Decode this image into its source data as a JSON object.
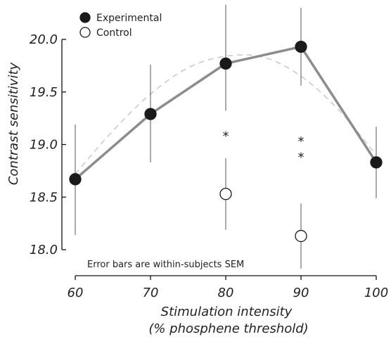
{
  "chart_data": {
    "type": "line",
    "x": [
      60,
      70,
      80,
      90,
      100
    ],
    "xlabel": "Stimulation intensity",
    "xlabel_sub": "(% phosphene threshold)",
    "ylabel": "Contrast sensitivity",
    "xlim": [
      60,
      100
    ],
    "ylim": [
      18.0,
      20.0
    ],
    "x_ticks": [
      "60",
      "70",
      "80",
      "90",
      "100"
    ],
    "y_ticks": [
      "18.0",
      "18.5",
      "19.0",
      "19.5",
      "20.0"
    ],
    "grid": false,
    "legend_position": "top-left",
    "series": [
      {
        "name": "Experimental",
        "marker": "filled-circle",
        "color": "#1a1a1a",
        "line_color": "#8c8c8c",
        "x": [
          60,
          70,
          80,
          90,
          100
        ],
        "y": [
          18.67,
          19.29,
          19.77,
          19.93,
          18.83
        ],
        "err_low": [
          18.14,
          18.83,
          19.32,
          19.56,
          18.49
        ],
        "err_high": [
          19.19,
          19.76,
          20.33,
          20.3,
          19.17
        ]
      },
      {
        "name": "Control",
        "marker": "open-circle",
        "color": "#1a1a1a",
        "x": [
          80,
          90
        ],
        "y": [
          18.53,
          18.13
        ],
        "err_low": [
          18.19,
          17.82
        ],
        "err_high": [
          18.87,
          18.44
        ]
      }
    ],
    "fit_curve": {
      "style": "dashed",
      "color": "#c8c8c8",
      "x": [
        60,
        65,
        70,
        75,
        80,
        85,
        90,
        95,
        100
      ],
      "y": [
        18.72,
        19.13,
        19.48,
        19.73,
        19.84,
        19.83,
        19.65,
        19.33,
        18.9
      ]
    },
    "significance": [
      {
        "x": 80,
        "y": 19.1,
        "label": "*"
      },
      {
        "x": 90,
        "y": 19.05,
        "label": "*"
      },
      {
        "x": 90,
        "y": 18.9,
        "label": "*"
      }
    ],
    "annotation": "Error bars are within-subjects SEM"
  }
}
